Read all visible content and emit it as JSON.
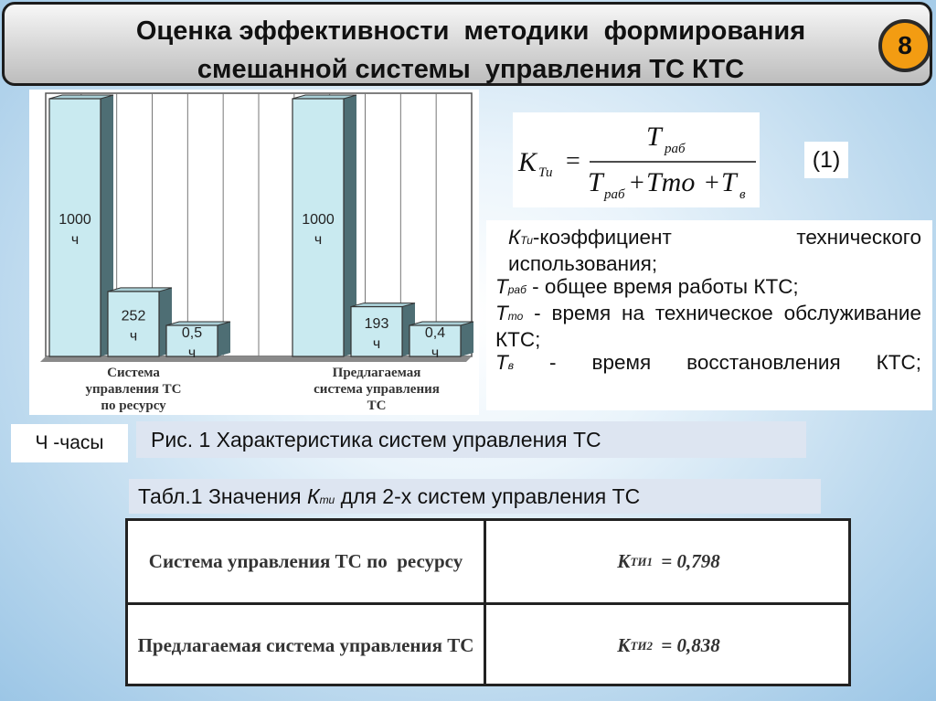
{
  "slide": {
    "title_line1": "Оценка эффективности  методики  формирования",
    "title_line2": "смешанной системы  управления ТС КТС",
    "page_number": "8",
    "badge_color": "#f39c12"
  },
  "formula": {
    "lhs": "К",
    "lhs_sub": "Ти",
    "equals": "=",
    "numerator": "T",
    "numerator_sub": "раб",
    "den_t1": "T",
    "den_t1_sub": "раб",
    "den_plus1": "+",
    "den_t2": "Tто",
    "den_plus2": "+",
    "den_t3": "T",
    "den_t3_sub": "в",
    "number": "(1)"
  },
  "definitions": [
    {
      "sym": "К",
      "sub": "Ти",
      "text": "-коэффициент технического использования;"
    },
    {
      "sym": "Т",
      "sub": "раб",
      "text": " - общее время работы КТС;"
    },
    {
      "sym": "Т",
      "sub": "то",
      "text": " - время на техническое обслуживание КТС;"
    },
    {
      "sym": "Т",
      "sub": "в",
      "text": " - время восстановления КТС;"
    }
  ],
  "legend_hours": "Ч -часы",
  "figure_caption": "Рис. 1  Характеристика систем управления ТС",
  "table_caption": {
    "prefix": "Табл.1 Значения ",
    "sym": "К",
    "sub": "ти",
    "suffix": " для 2-х систем управления ТС"
  },
  "table": {
    "rows": [
      {
        "system": "Система управления ТС по  ресурсу",
        "k_sym": "К",
        "k_sub": "ТИ1",
        "k_value": " = 0,798"
      },
      {
        "system": "Предлагаемая система управления ТС",
        "k_sym": "К",
        "k_sub": "ТИ2",
        "k_value": " = 0,838"
      }
    ]
  },
  "chart_data": {
    "type": "bar",
    "groups": [
      {
        "label_lines": [
          "Система",
          "управления ТС",
          "по  ресурсу"
        ],
        "bars": [
          {
            "value": 1000,
            "label": [
              "1000",
              "ч"
            ]
          },
          {
            "value": 252,
            "label": [
              "252",
              "ч"
            ]
          },
          {
            "value": 0.5,
            "label": [
              "0,5",
              "ч"
            ]
          }
        ]
      },
      {
        "label_lines": [
          "Предлагаемая",
          "система управления",
          "ТС"
        ],
        "bars": [
          {
            "value": 1000,
            "label": [
              "1000",
              "ч"
            ]
          },
          {
            "value": 193,
            "label": [
              "193",
              "ч"
            ]
          },
          {
            "value": 0.4,
            "label": [
              "0,4",
              "ч"
            ]
          }
        ]
      }
    ],
    "ylim": [
      0,
      1000
    ],
    "grid": true,
    "bar_color": "#c9eaf0"
  }
}
